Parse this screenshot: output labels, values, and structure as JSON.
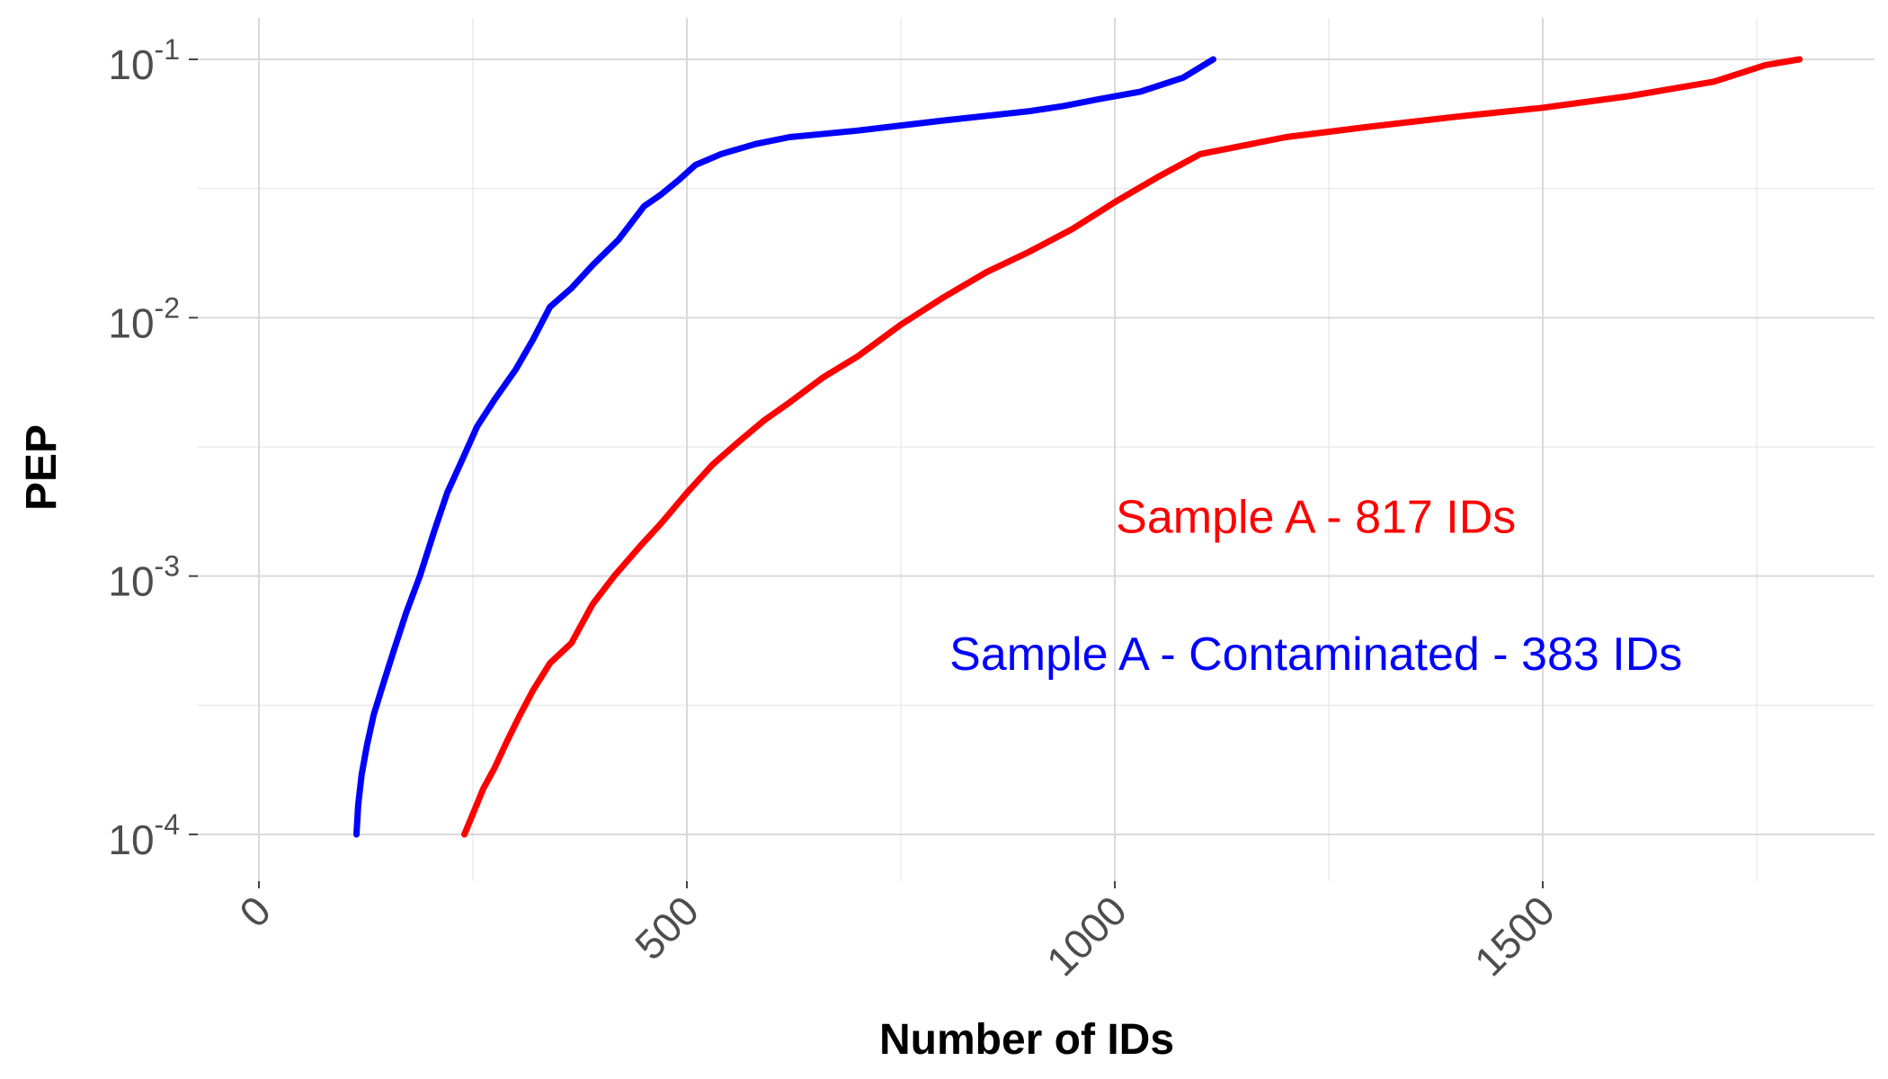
{
  "chart_data": {
    "type": "line",
    "title": "",
    "xlabel": "Number of IDs",
    "ylabel": "PEP",
    "y_scale": "log10",
    "xlim": [
      -75,
      1880
    ],
    "ylim": [
      5e-05,
      0.1
    ],
    "grid": true,
    "x_ticks": [
      {
        "value": 0,
        "label": "0"
      },
      {
        "value": 500,
        "label": "500"
      },
      {
        "value": 1000,
        "label": "1000"
      },
      {
        "value": 1500,
        "label": "1500"
      }
    ],
    "x_minor_ticks": [
      250,
      750,
      1250,
      1750
    ],
    "y_ticks": [
      {
        "value": 0.0001,
        "base": "10",
        "exp": "-4"
      },
      {
        "value": 0.001,
        "base": "10",
        "exp": "-3"
      },
      {
        "value": 0.01,
        "base": "10",
        "exp": "-2"
      },
      {
        "value": 0.1,
        "base": "10",
        "exp": "-1"
      }
    ],
    "series": [
      {
        "color": "#0000ff",
        "x": [
          114,
          116,
          120,
          126,
          134,
          145,
          158,
          172,
          188,
          205,
          220,
          235,
          255,
          275,
          300,
          320,
          340,
          365,
          390,
          420,
          450,
          470,
          490,
          510,
          540,
          580,
          620,
          700,
          800,
          900,
          940,
          980,
          1030,
          1080,
          1115
        ],
        "y": [
          0.0001,
          0.00013,
          0.00017,
          0.00022,
          0.00029,
          0.00038,
          0.00052,
          0.00072,
          0.001,
          0.0015,
          0.0021,
          0.0027,
          0.0038,
          0.0048,
          0.0063,
          0.0082,
          0.011,
          0.013,
          0.016,
          0.02,
          0.027,
          0.03,
          0.034,
          0.039,
          0.043,
          0.047,
          0.05,
          0.053,
          0.058,
          0.063,
          0.066,
          0.07,
          0.075,
          0.085,
          0.1
        ]
      },
      {
        "color": "#ff0000",
        "x": [
          240,
          250,
          262,
          275,
          290,
          305,
          320,
          340,
          365,
          390,
          415,
          445,
          470,
          500,
          530,
          560,
          590,
          620,
          660,
          700,
          750,
          800,
          850,
          900,
          950,
          1000,
          1050,
          1100,
          1200,
          1300,
          1400,
          1500,
          1600,
          1700,
          1760,
          1800
        ],
        "y": [
          0.0001,
          0.00012,
          0.00015,
          0.00018,
          0.00023,
          0.00029,
          0.00036,
          0.00046,
          0.00055,
          0.00078,
          0.001,
          0.0013,
          0.0016,
          0.0021,
          0.0027,
          0.0033,
          0.004,
          0.0047,
          0.0059,
          0.0071,
          0.0094,
          0.012,
          0.015,
          0.018,
          0.022,
          0.028,
          0.035,
          0.043,
          0.05,
          0.055,
          0.06,
          0.065,
          0.072,
          0.082,
          0.095,
          0.1
        ]
      }
    ],
    "annotations": [
      {
        "text": "Sample A - 817 IDs",
        "color": "#ff0000",
        "x": 1235,
        "y": 0.0017
      },
      {
        "text": "Sample A - Contaminated - 383 IDs",
        "color": "#0000ff",
        "x": 1235,
        "y": 0.0005
      }
    ]
  }
}
